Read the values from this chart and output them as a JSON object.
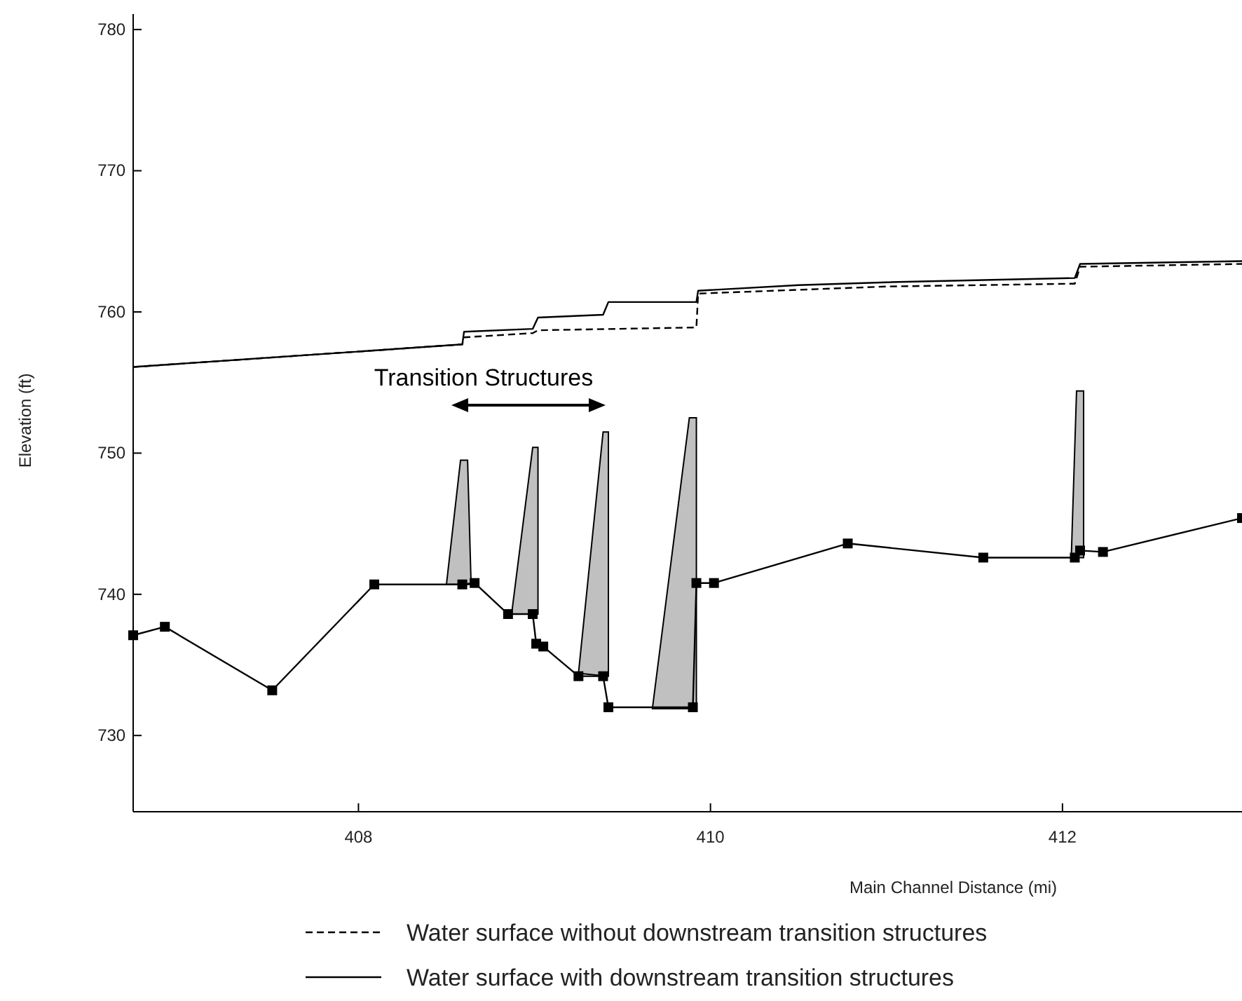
{
  "chart_data": {
    "type": "line",
    "xlabel": "Main Channel Distance (mi)",
    "ylabel": "Elevation (ft)",
    "xlim": [
      406.72,
      413.02
    ],
    "xticks": [
      408,
      410,
      412
    ],
    "ylim": [
      724.6,
      781.1
    ],
    "yticks": [
      730,
      740,
      750,
      760,
      770,
      780
    ],
    "grid": false,
    "legend": "bottom right",
    "annotations": [
      "Transition Structures"
    ],
    "series": [
      {
        "type": "area",
        "color": "#c0c0c0",
        "x": [
          408.5,
          408.58,
          408.62,
          408.64
        ],
        "values": [
          740.7,
          749.5,
          749.5,
          740.7
        ]
      },
      {
        "type": "area",
        "color": "#c0c0c0",
        "x": [
          408.87,
          408.99,
          409.02,
          409.02
        ],
        "values": [
          738.6,
          750.4,
          750.4,
          738.6
        ]
      },
      {
        "type": "area",
        "color": "#c0c0c0",
        "x": [
          409.25,
          409.39,
          409.42,
          409.42
        ],
        "values": [
          734.4,
          751.5,
          751.5,
          734.2
        ]
      },
      {
        "type": "area",
        "color": "#c0c0c0",
        "x": [
          409.67,
          409.88,
          409.92,
          409.92
        ],
        "values": [
          731.9,
          752.5,
          752.5,
          731.9
        ]
      },
      {
        "type": "area",
        "color": "#c0c0c0",
        "x": [
          412.05,
          412.08,
          412.12,
          412.12
        ],
        "values": [
          742.6,
          754.4,
          754.4,
          742.6
        ]
      },
      {
        "color": "#000000",
        "marker": "square",
        "line_style": "solid",
        "x": [
          406.72,
          406.9,
          407.51,
          408.09,
          408.59,
          408.66,
          408.85,
          408.99,
          409.01,
          409.05,
          409.25,
          409.39,
          409.42,
          409.9,
          409.92,
          410.02,
          410.78,
          411.55,
          412.07,
          412.1,
          412.23,
          413.02
        ],
        "values": [
          737.1,
          737.7,
          733.2,
          740.7,
          740.7,
          740.8,
          738.6,
          738.6,
          736.5,
          736.3,
          734.2,
          734.2,
          732.0,
          732.0,
          740.8,
          740.8,
          743.6,
          742.6,
          742.6,
          743.1,
          743.0,
          745.4
        ]
      },
      {
        "name": "Water surface without downstream transition structures",
        "color": "#000000",
        "marker": "none",
        "line_style": "dashed",
        "x": [
          406.72,
          408.59,
          408.6,
          408.99,
          409.02,
          409.92,
          409.93,
          411.0,
          412.07,
          412.1,
          413.02
        ],
        "values": [
          756.1,
          757.7,
          758.2,
          758.5,
          758.7,
          758.9,
          761.3,
          761.8,
          762.0,
          763.2,
          763.4
        ]
      },
      {
        "name": "Water surface with downstream transition structures",
        "color": "#000000",
        "marker": "none",
        "line_style": "solid",
        "x": [
          406.72,
          408.59,
          408.6,
          408.99,
          409.02,
          409.39,
          409.42,
          409.92,
          409.93,
          410.5,
          411.0,
          412.07,
          412.1,
          413.02
        ],
        "values": [
          756.1,
          757.7,
          758.6,
          758.8,
          759.6,
          759.8,
          760.7,
          760.7,
          761.5,
          761.9,
          762.1,
          762.4,
          763.4,
          763.6
        ]
      }
    ]
  }
}
